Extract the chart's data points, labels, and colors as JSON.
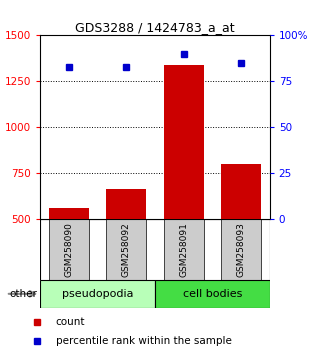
{
  "title": "GDS3288 / 1424783_a_at",
  "samples": [
    "GSM258090",
    "GSM258092",
    "GSM258091",
    "GSM258093"
  ],
  "counts": [
    560,
    665,
    1340,
    800
  ],
  "percentiles": [
    83,
    83,
    90,
    85
  ],
  "group_labels": [
    "pseudopodia",
    "cell bodies"
  ],
  "group_colors_light": [
    "#b8ffb8",
    "#44dd44"
  ],
  "bar_color": "#cc0000",
  "dot_color": "#0000cc",
  "ylim_left": [
    500,
    1500
  ],
  "ylim_right": [
    0,
    100
  ],
  "yticks_left": [
    500,
    750,
    1000,
    1250,
    1500
  ],
  "yticks_right": [
    0,
    25,
    50,
    75,
    100
  ],
  "bg_color": "#ffffff",
  "tick_box_color": "#cccccc"
}
